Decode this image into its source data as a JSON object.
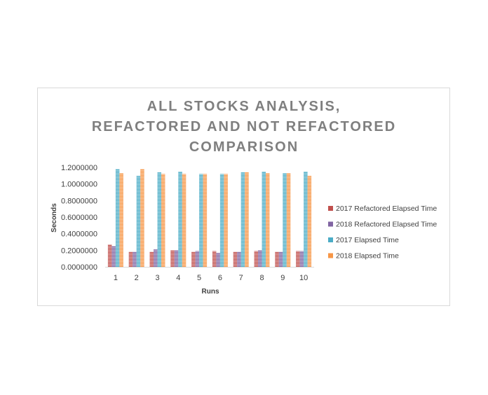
{
  "chart_data": {
    "type": "bar",
    "title_lines": [
      "ALL STOCKS ANALYSIS,",
      "REFACTORED AND NOT REFACTORED",
      "COMPARISON"
    ],
    "xlabel": "Runs",
    "ylabel": "Seconds",
    "categories": [
      "1",
      "2",
      "3",
      "4",
      "5",
      "6",
      "7",
      "8",
      "9",
      "10"
    ],
    "ylim": [
      0,
      1.2
    ],
    "yticks": [
      "0.0000000",
      "0.2000000",
      "0.4000000",
      "0.6000000",
      "0.8000000",
      "1.0000000",
      "1.2000000"
    ],
    "grid": false,
    "legend_position": "right",
    "series": [
      {
        "name": "2017 Refactored Elapsed Time",
        "color": "#c0504d",
        "values": [
          0.27,
          0.18,
          0.18,
          0.2,
          0.18,
          0.19,
          0.18,
          0.19,
          0.18,
          0.19
        ]
      },
      {
        "name": "2018 Refactored Elapsed Time",
        "color": "#8064a2",
        "values": [
          0.25,
          0.18,
          0.21,
          0.2,
          0.19,
          0.17,
          0.18,
          0.2,
          0.18,
          0.19
        ]
      },
      {
        "name": "2017 Elapsed Time",
        "color": "#4bacc6",
        "values": [
          1.18,
          1.1,
          1.14,
          1.15,
          1.12,
          1.12,
          1.14,
          1.15,
          1.13,
          1.15
        ]
      },
      {
        "name": "2018 Elapsed Time",
        "color": "#f79646",
        "values": [
          1.13,
          1.18,
          1.12,
          1.12,
          1.12,
          1.12,
          1.14,
          1.13,
          1.13,
          1.1
        ]
      }
    ]
  }
}
